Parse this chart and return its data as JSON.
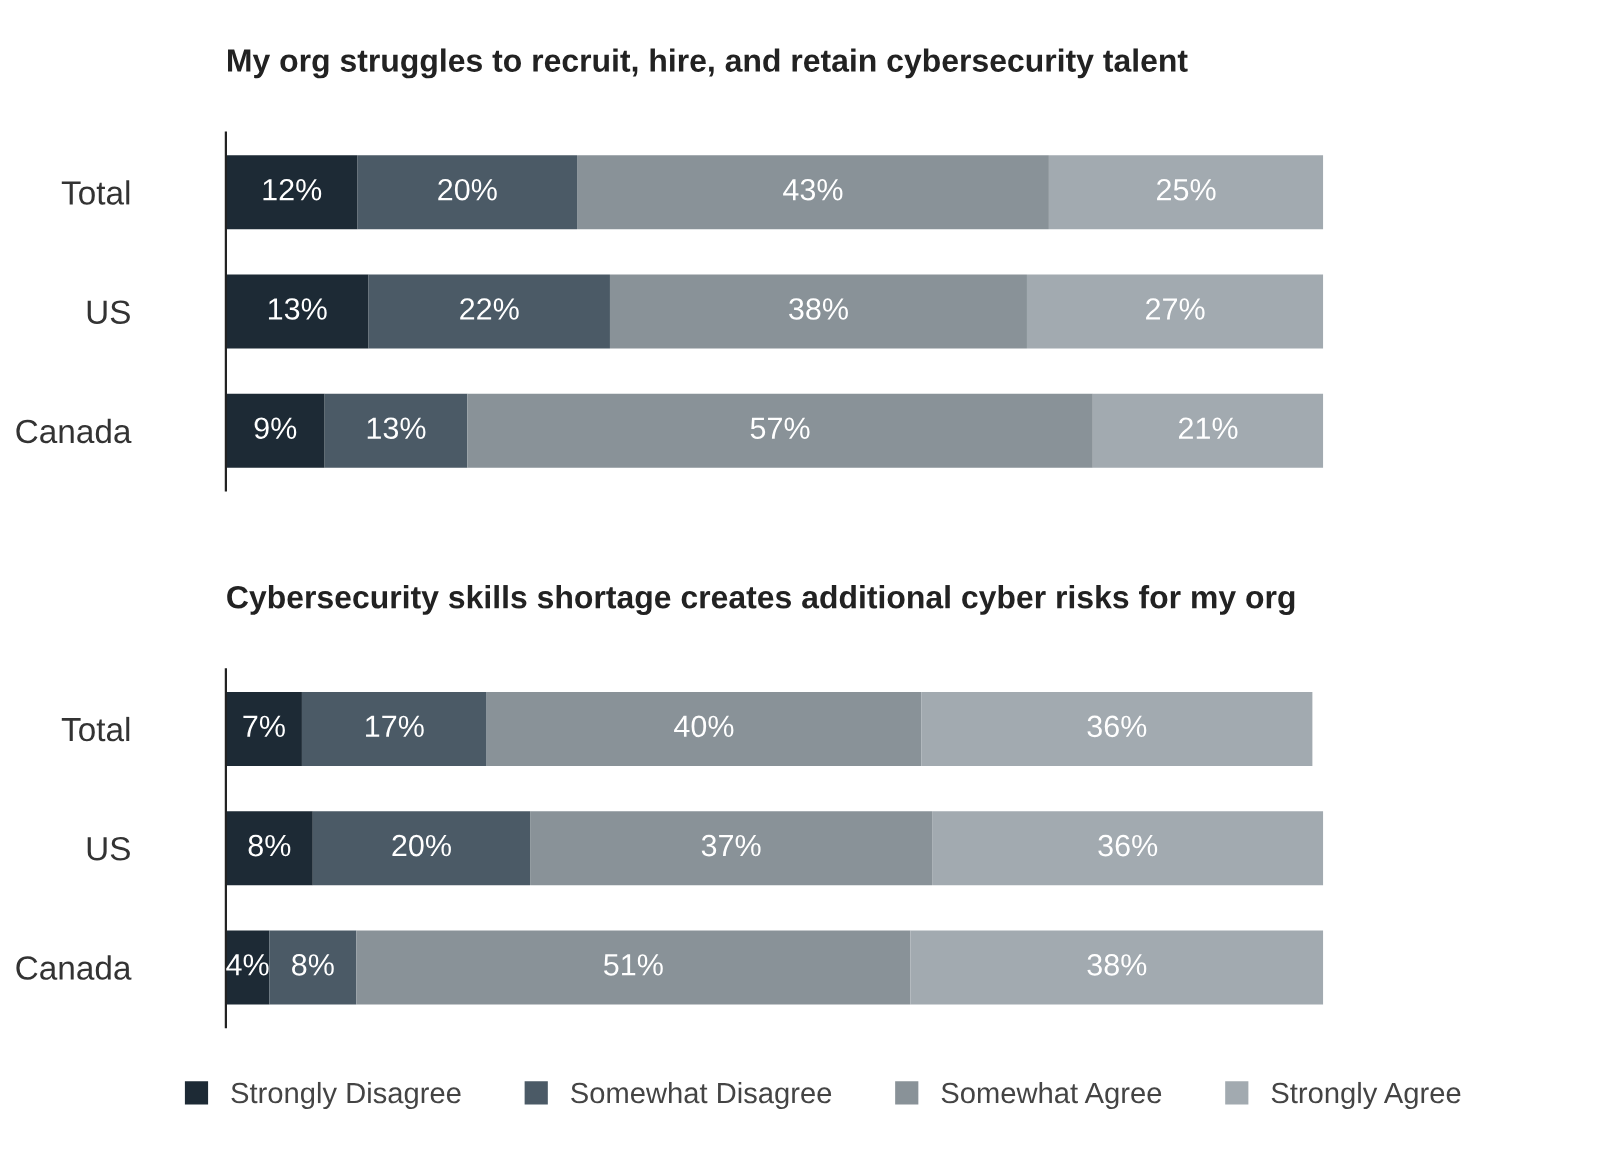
{
  "chart_data": [
    {
      "type": "bar",
      "title": "My org struggles to recruit, hire, and retain cybersecurity talent",
      "orientation": "horizontal",
      "stacked": true,
      "categories": [
        "Total",
        "US",
        "Canada"
      ],
      "tick_labels": "y",
      "series": [
        {
          "color": "#1d2a35",
          "values": [
            12,
            13,
            9
          ],
          "value_labels": [
            "12%",
            "13%",
            "9%"
          ]
        },
        {
          "color": "#4b5a66",
          "values": [
            20,
            22,
            13
          ],
          "value_labels": [
            "20%",
            "22%",
            "13%"
          ]
        },
        {
          "color": "#899298",
          "values": [
            43,
            38,
            57
          ],
          "value_labels": [
            "43%",
            "38%",
            "57%"
          ]
        },
        {
          "color": "#a2aab0",
          "values": [
            25,
            27,
            21
          ],
          "value_labels": [
            "25%",
            "27%",
            "21%"
          ]
        }
      ]
    },
    {
      "type": "bar",
      "title": "Cybersecurity skills shortage creates additional cyber risks for my org",
      "orientation": "horizontal",
      "stacked": true,
      "categories": [
        "Total",
        "US",
        "Canada"
      ],
      "tick_labels": "y",
      "legend": "bottom",
      "series": [
        {
          "name": "Strongly Disagree",
          "color": "#1d2a35",
          "values": [
            7,
            8,
            4
          ],
          "value_labels": [
            "7%",
            "8%",
            "4%"
          ]
        },
        {
          "name": "Somewhat Disagree",
          "color": "#4b5a66",
          "values": [
            17,
            20,
            8
          ],
          "value_labels": [
            "17%",
            "20%",
            "8%"
          ]
        },
        {
          "name": "Somewhat Agree",
          "color": "#899298",
          "values": [
            40,
            37,
            51
          ],
          "value_labels": [
            "40%",
            "37%",
            "51%"
          ]
        },
        {
          "name": "Strongly Agree",
          "color": "#a2aab0",
          "values": [
            36,
            36,
            38
          ],
          "value_labels": [
            "36%",
            "36%",
            "38%"
          ]
        }
      ]
    }
  ]
}
